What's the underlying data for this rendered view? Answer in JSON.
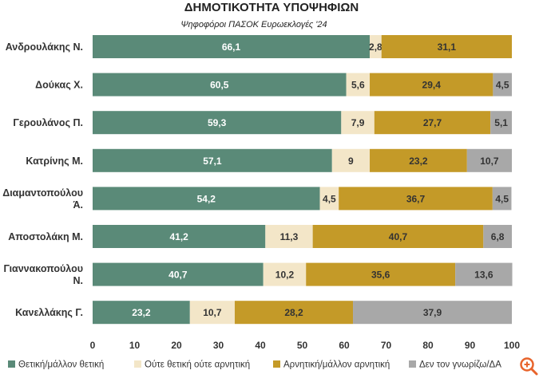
{
  "chart_data": {
    "type": "bar",
    "orientation": "horizontal",
    "stacked": true,
    "title": "ΔΗΜΟΤΙΚΟΤΗΤΑ ΥΠΟΨΗΦΙΩΝ",
    "subtitle": "Ψηφοφόροι ΠΑΣΟΚ Ευρωεκλογές '24",
    "categories": [
      [
        "Ανδρουλάκης Ν."
      ],
      [
        "Δούκας Χ."
      ],
      [
        "Γερουλάνος Π."
      ],
      [
        "Κατρίνης Μ."
      ],
      [
        "Διαμαντοπούλου",
        "Ά."
      ],
      [
        "Αποστολάκη Μ."
      ],
      [
        "Γιαννακοπούλου",
        "Ν."
      ],
      [
        "Κανελλάκης Γ."
      ]
    ],
    "series": [
      {
        "name": "Θετική/μάλλον θετική",
        "color": "#5a8a78",
        "label_color": "#ffffff",
        "values": [
          66.1,
          60.5,
          59.3,
          57.1,
          54.2,
          41.2,
          40.7,
          23.2
        ]
      },
      {
        "name": "Ούτε θετική ούτε αρνητική",
        "color": "#f3e6c8",
        "label_color": "#333333",
        "values": [
          2.8,
          5.6,
          7.9,
          9,
          4.5,
          11.3,
          10.2,
          10.7
        ]
      },
      {
        "name": "Αρνητική/μάλλον αρνητική",
        "color": "#c49a28",
        "label_color": "#333333",
        "values": [
          31.1,
          29.4,
          27.7,
          23.2,
          36.7,
          40.7,
          35.6,
          28.2
        ]
      },
      {
        "name": "Δεν τον γνωρίζω/ΔΑ",
        "color": "#a8a8a8",
        "label_color": "#333333",
        "values": [
          null,
          4.5,
          5.1,
          10.7,
          4.5,
          6.8,
          13.6,
          37.9
        ]
      }
    ],
    "xlim": [
      0,
      100
    ],
    "xticks": [
      0,
      10,
      20,
      30,
      40,
      50,
      60,
      70,
      80,
      90,
      100
    ],
    "legend_position": "bottom",
    "grid": false
  },
  "zoom_icon": "zoom-in-icon",
  "colors": {
    "accent": "#e8642c"
  }
}
